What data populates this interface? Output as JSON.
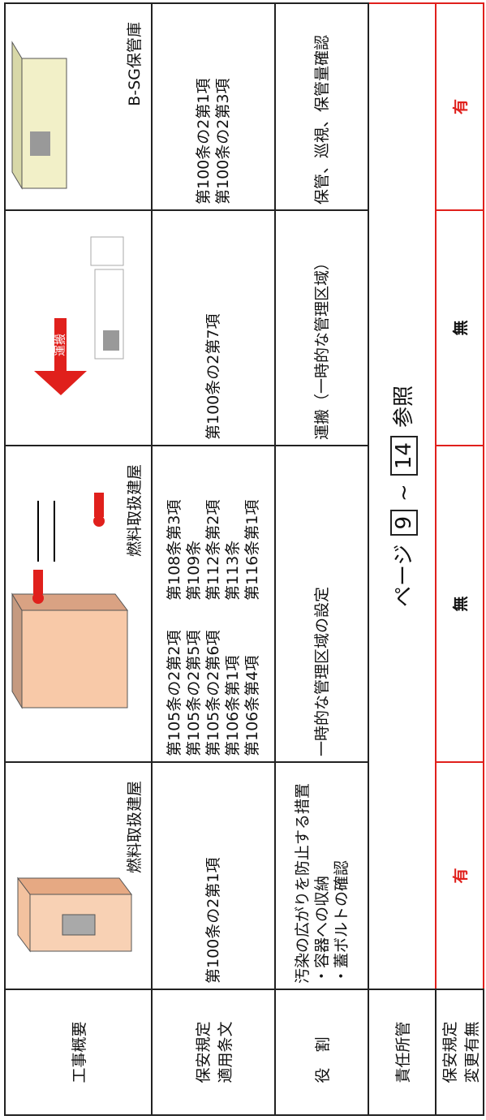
{
  "overview": {
    "header": "工事概要",
    "cells": [
      {
        "caption": "燃料取扱建屋"
      },
      {
        "caption": "燃料取扱建屋"
      },
      {
        "label": "運搬"
      },
      {
        "caption": "B-SG保管庫"
      }
    ]
  },
  "articles": {
    "header": [
      "保安規定",
      "適用条文"
    ],
    "cells": [
      [
        "第100条の2第1項"
      ],
      [
        "第105条の2第2項",
        "第105条の2第5項",
        "第105条の2第6項",
        "第106条第1項",
        "第106条第4項",
        "第108条第3項",
        "第109条",
        "第112条第2項",
        "第113条",
        "第116条第1項"
      ],
      [
        "第100条の2第7項"
      ],
      [
        "第100条の2第1項",
        "第100条の2第3項"
      ]
    ]
  },
  "roles": {
    "header": "役割",
    "cells": [
      [
        "汚染の広がりを防止する措置",
        "・容器への収納",
        "・蓋ボルトの確認"
      ],
      [
        "一時的な管理区域の設定"
      ],
      [
        "運搬（一時的な管理区域）"
      ],
      [
        "保管、巡視、保管量確認"
      ]
    ]
  },
  "responsibility": {
    "header": "責任所管",
    "text": [
      "ページ",
      "9",
      "~",
      "14",
      "参照"
    ]
  },
  "changes": {
    "header": [
      "保安規定",
      "変更有無"
    ],
    "values": [
      "有",
      "無",
      "無",
      "有"
    ]
  }
}
